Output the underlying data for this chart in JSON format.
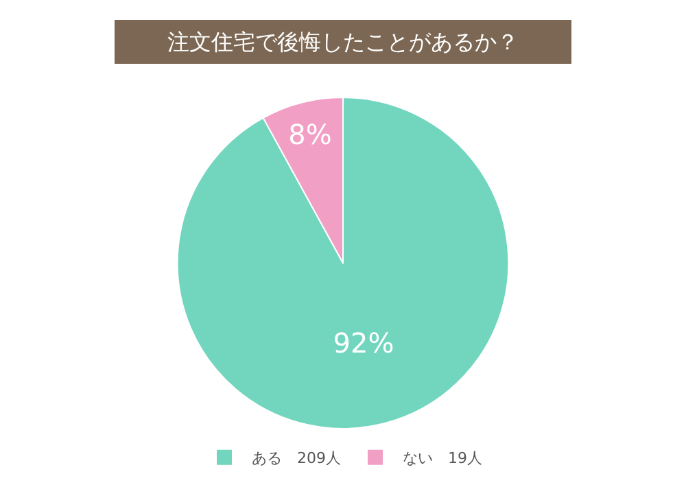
{
  "chart_data": {
    "type": "pie",
    "title": "注文住宅で後悔したことがあるか？",
    "categories": [
      "ある　209人",
      "ない　19人"
    ],
    "values": [
      92,
      8
    ],
    "colors": [
      "#72d6bf",
      "#f29fc5"
    ],
    "value_labels": [
      "92%",
      "8%"
    ],
    "legend": "bottom"
  }
}
